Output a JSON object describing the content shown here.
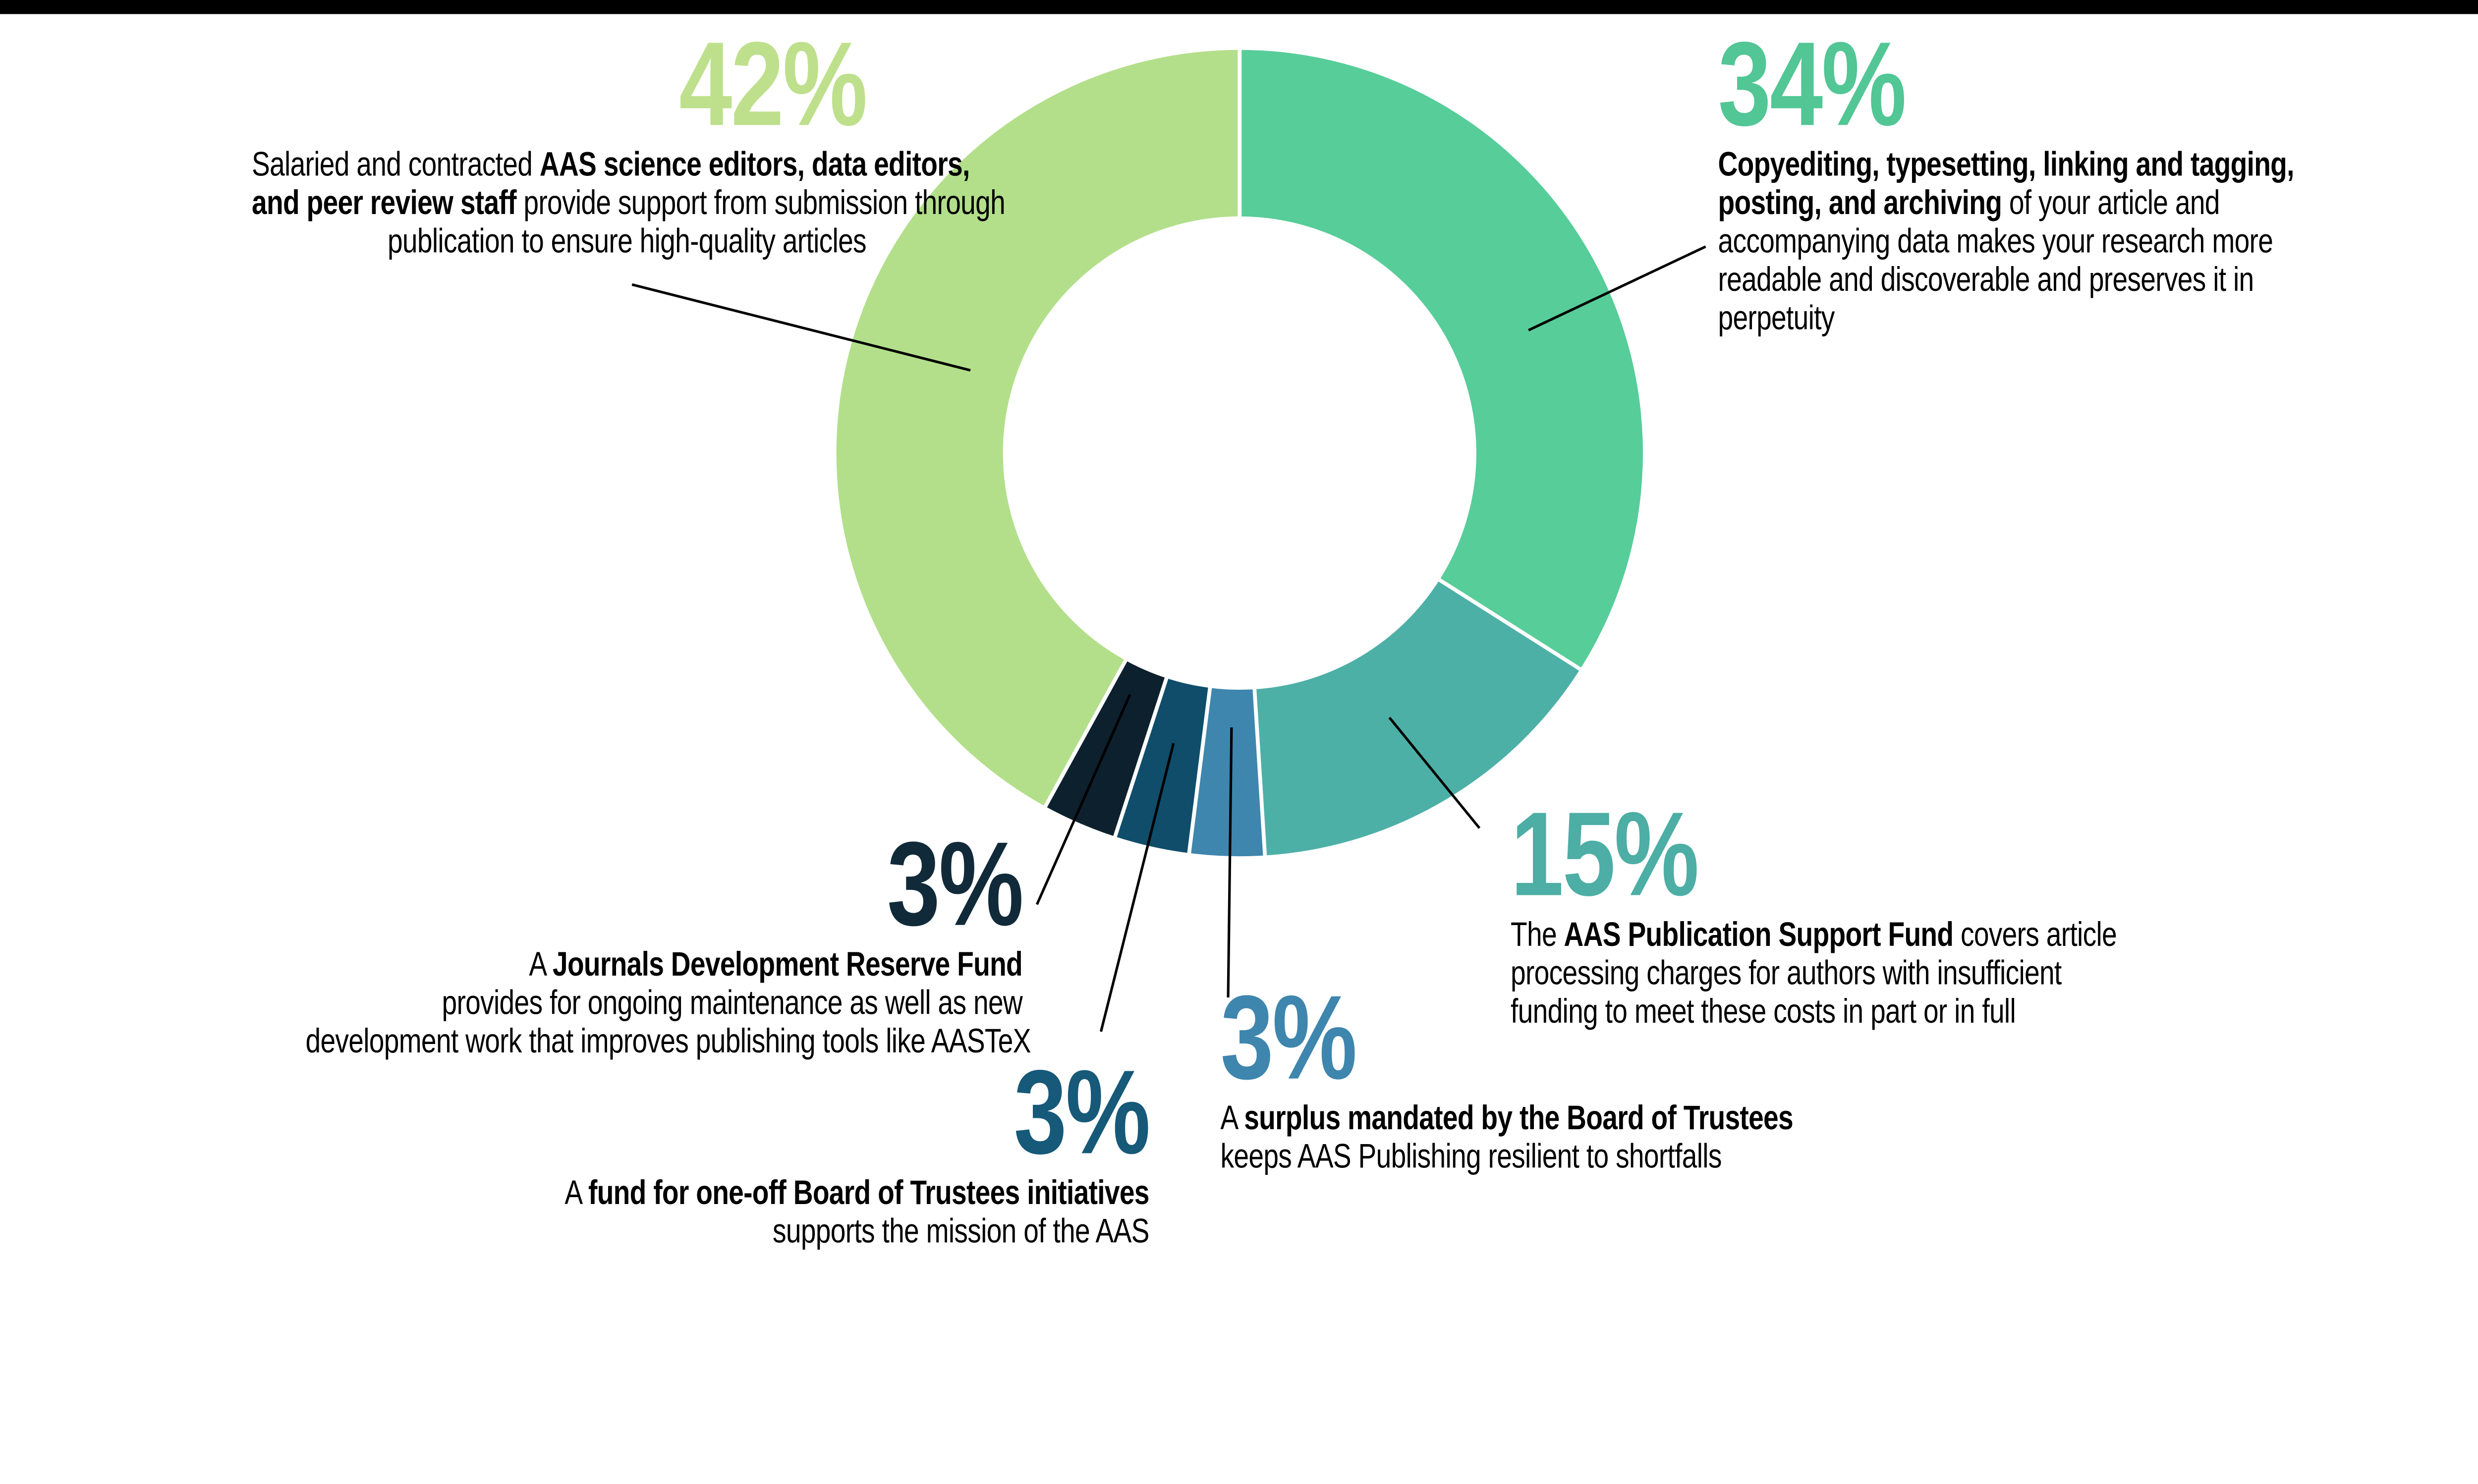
{
  "chart_data": {
    "type": "pie",
    "subtype": "donut",
    "title": "",
    "start_angle_deg": 0,
    "clockwise": true,
    "inner_radius_ratio": 0.587,
    "gap_color": "#ffffff",
    "leader_line_color": "#000000",
    "series": [
      {
        "name": "Copyediting, typesetting, linking and tagging, posting, and archiving",
        "value": 34,
        "color": "#57CD99"
      },
      {
        "name": "AAS Publication Support Fund",
        "value": 15,
        "color": "#4DB0A7"
      },
      {
        "name": "Surplus mandated by the Board of Trustees",
        "value": 3,
        "color": "#3E86AD"
      },
      {
        "name": "Fund for one-off Board of Trustees initiatives",
        "value": 3,
        "color": "#0F4D6A"
      },
      {
        "name": "Journals Development Reserve Fund",
        "value": 3,
        "color": "#0D202D"
      },
      {
        "name": "AAS science editors, data editors, and peer review staff",
        "value": 42,
        "color": "#B3DF8B"
      }
    ]
  },
  "top_bar_color": "#000000",
  "callouts": {
    "c42": {
      "pct": "42%",
      "pct_color": "#BEE08C",
      "lines": [
        [
          {
            "t": "Salaried and contracted ",
            "b": 0
          },
          {
            "t": "AAS science editors, data editors,",
            "b": 1
          }
        ],
        [
          {
            "t": "and peer review staff",
            "b": 1
          },
          {
            "t": " provide support from submission through",
            "b": 0
          }
        ],
        [
          {
            "t": "publication to ensure high-quality articles",
            "b": 0
          }
        ]
      ]
    },
    "c34": {
      "pct": "34%",
      "pct_color": "#52C694",
      "lines": [
        [
          {
            "t": "Copyediting, typesetting, linking and tagging,",
            "b": 1
          }
        ],
        [
          {
            "t": "posting, and archiving",
            "b": 1
          },
          {
            "t": " of your article and",
            "b": 0
          }
        ],
        [
          {
            "t": "accompanying data makes your research more",
            "b": 0
          }
        ],
        [
          {
            "t": "readable and discoverable and preserves it in",
            "b": 0
          }
        ],
        [
          {
            "t": "perpetuity",
            "b": 0
          }
        ]
      ]
    },
    "c15": {
      "pct": "15%",
      "pct_color": "#4CAEA5",
      "lines": [
        [
          {
            "t": "The ",
            "b": 0
          },
          {
            "t": "AAS Publication Support Fund",
            "b": 1
          },
          {
            "t": " covers article",
            "b": 0
          }
        ],
        [
          {
            "t": "processing charges for authors with insufficient",
            "b": 0
          }
        ],
        [
          {
            "t": "funding to meet these costs in part or in full",
            "b": 0
          }
        ]
      ]
    },
    "c3navy": {
      "pct": "3%",
      "pct_color": "#112A3A",
      "lines": [
        [
          {
            "t": "A ",
            "b": 0
          },
          {
            "t": "Journals Development Reserve Fund",
            "b": 1
          }
        ],
        [
          {
            "t": "provides for ongoing maintenance as well as new",
            "b": 0
          }
        ],
        [
          {
            "t": "development work that improves publishing tools like AASTeX",
            "b": 0
          }
        ]
      ]
    },
    "c3one": {
      "pct": "3%",
      "pct_color": "#165979",
      "lines": [
        [
          {
            "t": "A ",
            "b": 0
          },
          {
            "t": "fund for one-off Board of Trustees initiatives",
            "b": 1
          }
        ],
        [
          {
            "t": "supports the mission of the AAS",
            "b": 0
          }
        ]
      ]
    },
    "c3sur": {
      "pct": "3%",
      "pct_color": "#3E86AD",
      "lines": [
        [
          {
            "t": "A ",
            "b": 0
          },
          {
            "t": "surplus mandated by the Board of Trustees",
            "b": 1
          }
        ],
        [
          {
            "t": "keeps AAS Publishing resilient to shortfalls",
            "b": 0
          }
        ]
      ]
    }
  }
}
